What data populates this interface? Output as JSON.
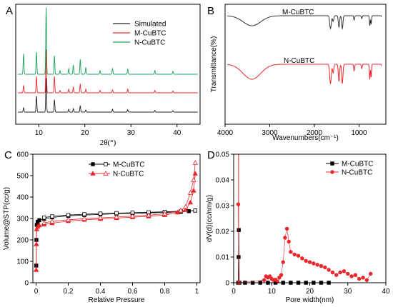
{
  "chart_data": [
    {
      "panel": "A",
      "type": "line",
      "xlabel": "2θ(°)",
      "ylabel": "",
      "xlim": [
        5,
        45
      ],
      "xticks": [
        10,
        20,
        30,
        40
      ],
      "y_axis_labels_shown": false,
      "legend_placement": "top-right",
      "series": [
        {
          "name": "Simulated",
          "color": "#222222",
          "peaks": [
            [
              6.7,
              0.12
            ],
            [
              9.5,
              0.45
            ],
            [
              11.6,
              0.95
            ],
            [
              13.4,
              0.35
            ],
            [
              16.5,
              0.08
            ],
            [
              17.5,
              0.1
            ],
            [
              19.0,
              0.18
            ],
            [
              20.2,
              0.06
            ],
            [
              26.0,
              0.08
            ],
            [
              29.3,
              0.07
            ],
            [
              35.2,
              0.05
            ],
            [
              39.1,
              0.04
            ]
          ]
        },
        {
          "name": "M-CuBTC",
          "color": "#e8262b",
          "peaks": [
            [
              6.7,
              0.25
            ],
            [
              9.5,
              0.55
            ],
            [
              11.6,
              1.45
            ],
            [
              13.4,
              0.55
            ],
            [
              14.6,
              0.08
            ],
            [
              16.5,
              0.12
            ],
            [
              17.5,
              0.2
            ],
            [
              19.0,
              0.3
            ],
            [
              20.2,
              0.12
            ],
            [
              23.3,
              0.08
            ],
            [
              26.0,
              0.1
            ],
            [
              29.3,
              0.12
            ],
            [
              35.2,
              0.08
            ],
            [
              39.1,
              0.06
            ]
          ]
        },
        {
          "name": "N-CuBTC",
          "color": "#1aa15a",
          "peaks": [
            [
              6.7,
              0.55
            ],
            [
              9.5,
              0.6
            ],
            [
              11.6,
              1.8
            ],
            [
              13.4,
              0.5
            ],
            [
              14.6,
              0.1
            ],
            [
              16.5,
              0.15
            ],
            [
              17.5,
              0.25
            ],
            [
              19.0,
              0.4
            ],
            [
              20.2,
              0.18
            ],
            [
              23.3,
              0.1
            ],
            [
              26.0,
              0.15
            ],
            [
              29.3,
              0.14
            ],
            [
              35.2,
              0.1
            ],
            [
              39.1,
              0.08
            ]
          ]
        }
      ]
    },
    {
      "panel": "B",
      "type": "line",
      "xlabel": "Wavenumbers(cm⁻¹)",
      "ylabel": "Transmittance(%)",
      "xlim": [
        4000,
        400
      ],
      "xticks": [
        4000,
        3000,
        2000,
        1000
      ],
      "y_axis_labels_shown": false,
      "series": [
        {
          "name": "M-CuBTC",
          "color": "#333333",
          "bands": [
            [
              3400,
              0.35,
              280
            ],
            [
              1640,
              0.45,
              25
            ],
            [
              1580,
              0.2,
              20
            ],
            [
              1450,
              0.4,
              20
            ],
            [
              1375,
              0.45,
              20
            ],
            [
              1110,
              0.15,
              15
            ],
            [
              940,
              0.1,
              15
            ],
            [
              760,
              0.35,
              12
            ],
            [
              730,
              0.3,
              12
            ],
            [
              490,
              0.1,
              10
            ]
          ]
        },
        {
          "name": "N-CuBTC",
          "color": "#e8262b",
          "bands": [
            [
              3400,
              0.35,
              280
            ],
            [
              1640,
              0.45,
              25
            ],
            [
              1580,
              0.2,
              20
            ],
            [
              1450,
              0.4,
              20
            ],
            [
              1375,
              0.45,
              20
            ],
            [
              1110,
              0.15,
              15
            ],
            [
              940,
              0.1,
              15
            ],
            [
              760,
              0.35,
              12
            ],
            [
              730,
              0.3,
              12
            ],
            [
              490,
              0.1,
              10
            ]
          ]
        }
      ]
    },
    {
      "panel": "C",
      "type": "line",
      "xlabel": "Relative Pressure",
      "ylabel": "Volume@STP(cc/g)",
      "xlim": [
        0,
        1.0
      ],
      "ylim": [
        0,
        600
      ],
      "xticks": [
        0.0,
        0.2,
        0.4,
        0.6,
        0.8,
        1.0
      ],
      "yticks": [
        0,
        100,
        200,
        300,
        400,
        500,
        600
      ],
      "legend_placement": "top-center",
      "series": [
        {
          "name": "M-CuBTC",
          "color": "#000000",
          "marker": "square",
          "adsorption": [
            [
              0.001,
              80
            ],
            [
              0.002,
              200
            ],
            [
              0.004,
              270
            ],
            [
              0.01,
              285
            ],
            [
              0.02,
              292
            ],
            [
              0.05,
              298
            ],
            [
              0.1,
              305
            ],
            [
              0.2,
              312
            ],
            [
              0.3,
              316
            ],
            [
              0.4,
              319
            ],
            [
              0.5,
              322
            ],
            [
              0.6,
              324
            ],
            [
              0.7,
              326
            ],
            [
              0.8,
              328
            ],
            [
              0.9,
              331
            ],
            [
              0.95,
              334
            ],
            [
              0.99,
              337
            ]
          ],
          "desorption": [
            [
              0.99,
              337
            ],
            [
              0.9,
              334
            ],
            [
              0.8,
              331
            ],
            [
              0.7,
              329
            ],
            [
              0.6,
              327
            ],
            [
              0.5,
              325
            ],
            [
              0.4,
              323
            ],
            [
              0.3,
              320
            ],
            [
              0.2,
              316
            ],
            [
              0.1,
              310
            ],
            [
              0.05,
              304
            ]
          ]
        },
        {
          "name": "N-CuBTC",
          "color": "#e8262b",
          "marker": "triangle",
          "adsorption": [
            [
              0.001,
              60
            ],
            [
              0.002,
              180
            ],
            [
              0.004,
              250
            ],
            [
              0.01,
              262
            ],
            [
              0.02,
              268
            ],
            [
              0.05,
              272
            ],
            [
              0.1,
              278
            ],
            [
              0.2,
              288
            ],
            [
              0.3,
              294
            ],
            [
              0.4,
              298
            ],
            [
              0.5,
              302
            ],
            [
              0.6,
              306
            ],
            [
              0.7,
              310
            ],
            [
              0.8,
              316
            ],
            [
              0.88,
              328
            ],
            [
              0.93,
              340
            ],
            [
              0.96,
              375
            ],
            [
              0.98,
              430
            ],
            [
              0.99,
              510
            ]
          ],
          "desorption": [
            [
              0.99,
              560
            ],
            [
              0.98,
              480
            ],
            [
              0.96,
              420
            ],
            [
              0.93,
              355
            ],
            [
              0.9,
              338
            ],
            [
              0.8,
              322
            ],
            [
              0.7,
              315
            ],
            [
              0.6,
              311
            ],
            [
              0.5,
              307
            ],
            [
              0.4,
              303
            ],
            [
              0.3,
              299
            ],
            [
              0.2,
              294
            ],
            [
              0.1,
              286
            ],
            [
              0.05,
              280
            ]
          ]
        }
      ]
    },
    {
      "panel": "D",
      "type": "line",
      "xlabel": "Pore width(nm)",
      "ylabel": "dV(d)(cc/nm/g)",
      "xlim": [
        0,
        40
      ],
      "ylim": [
        0,
        0.05
      ],
      "xticks": [
        0,
        10,
        20,
        30,
        40
      ],
      "yticks": [
        0.0,
        0.01,
        0.02,
        0.03,
        0.04,
        0.05
      ],
      "legend_placement": "top-right",
      "series": [
        {
          "name": "M-CuBTC",
          "color": "#000000",
          "marker": "square",
          "points": [
            [
              1.2,
              0.0
            ],
            [
              1.3,
              0.01
            ],
            [
              1.35,
              0.0205
            ],
            [
              1.5,
              0.0
            ],
            [
              3,
              0
            ],
            [
              5,
              0
            ],
            [
              7,
              0
            ],
            [
              9,
              0
            ],
            [
              11,
              0
            ],
            [
              13,
              0
            ],
            [
              15,
              0
            ],
            [
              17,
              0
            ],
            [
              19,
              0
            ],
            [
              21,
              0
            ],
            [
              23,
              0
            ],
            [
              25,
              0
            ]
          ]
        },
        {
          "name": "N-CuBTC",
          "color": "#e8262b",
          "marker": "circle",
          "points": [
            [
              1.2,
              0.0305
            ],
            [
              1.4,
              0.0
            ],
            [
              8.0,
              0.001
            ],
            [
              8.5,
              0.0025
            ],
            [
              9.0,
              0.002
            ],
            [
              9.5,
              0.0025
            ],
            [
              10.0,
              0.0015
            ],
            [
              10.5,
              0.001
            ],
            [
              11.0,
              0.0012
            ],
            [
              11.5,
              0.0005
            ],
            [
              12.0,
              0.002
            ],
            [
              12.5,
              0.003
            ],
            [
              13.0,
              0.008
            ],
            [
              13.5,
              0.0175
            ],
            [
              14.0,
              0.021
            ],
            [
              14.5,
              0.016
            ],
            [
              15.0,
              0.012
            ],
            [
              16.0,
              0.011
            ],
            [
              17.0,
              0.0105
            ],
            [
              18.0,
              0.0095
            ],
            [
              19.0,
              0.0085
            ],
            [
              20.0,
              0.008
            ],
            [
              21.0,
              0.0075
            ],
            [
              22.0,
              0.007
            ],
            [
              23.0,
              0.0065
            ],
            [
              24.0,
              0.006
            ],
            [
              25.0,
              0.005
            ],
            [
              26.0,
              0.004
            ],
            [
              27.0,
              0.003
            ],
            [
              28.0,
              0.004
            ],
            [
              29.0,
              0.0045
            ],
            [
              30.0,
              0.0035
            ],
            [
              31.0,
              0.0025
            ],
            [
              32.0,
              0.003
            ],
            [
              33.0,
              0.0015
            ],
            [
              34.0,
              0.002
            ],
            [
              35.0,
              0.001
            ],
            [
              36.0,
              0.0035
            ]
          ]
        }
      ]
    }
  ]
}
